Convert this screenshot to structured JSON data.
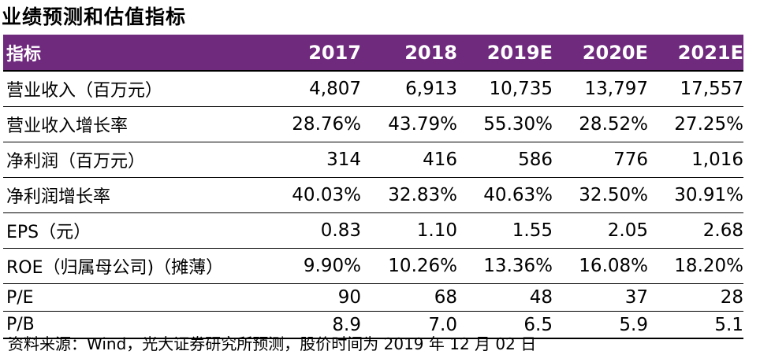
{
  "title": "业绩预测和估值指标",
  "table": {
    "header": [
      "指标",
      "2017",
      "2018",
      "2019E",
      "2020E",
      "2021E"
    ],
    "rows": [
      {
        "label": "营业收入（百万元）",
        "values": [
          "4,807",
          "6,913",
          "10,735",
          "13,797",
          "17,557"
        ]
      },
      {
        "label": "营业收入增长率",
        "values": [
          "28.76%",
          "43.79%",
          "55.30%",
          "28.52%",
          "27.25%"
        ]
      },
      {
        "label": "净利润（百万元）",
        "values": [
          "314",
          "416",
          "586",
          "776",
          "1,016"
        ]
      },
      {
        "label": "净利润增长率",
        "values": [
          "40.03%",
          "32.83%",
          "40.63%",
          "32.50%",
          "30.91%"
        ]
      },
      {
        "label": "EPS（元）",
        "values": [
          "0.83",
          "1.10",
          "1.55",
          "2.05",
          "2.68"
        ]
      },
      {
        "label": "ROE（归属母公司)（摊薄）",
        "values": [
          "9.90%",
          "10.26%",
          "13.36%",
          "16.08%",
          "18.20%"
        ]
      },
      {
        "label": "P/E",
        "values": [
          "90",
          "68",
          "48",
          "37",
          "28"
        ]
      },
      {
        "label": "P/B",
        "values": [
          "8.9",
          "7.0",
          "6.5",
          "5.9",
          "5.1"
        ]
      }
    ]
  },
  "footer": "资料来源：Wind，光大证券研究所预测，股价时间为 2019 年 12 月 02 日",
  "colors": {
    "header_bg": "#6f2a7e",
    "header_text": "#ffffff",
    "rule": "#000000"
  }
}
